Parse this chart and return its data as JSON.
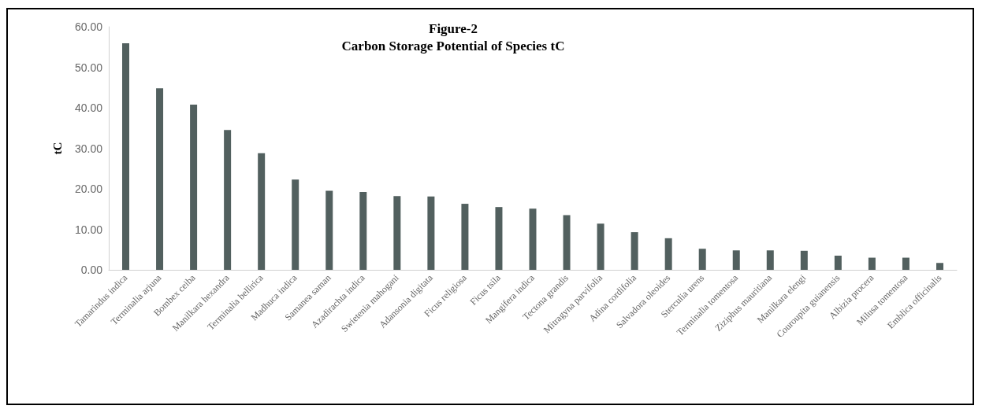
{
  "chart_data": {
    "type": "bar",
    "title": "Figure-2\nCarbon Storage Potential of Species tC",
    "ylabel": "tC",
    "categories": [
      "Tamarindus indica",
      "Terminalia arjuna",
      "Bombex ceiba",
      "Manilkara hexandra",
      "Terminalia bellirica",
      "Madhuca indica",
      "Samanea saman",
      "Azadirachta indica",
      "Swietenia mahogani",
      "Adansonia digitata",
      "Ficus religiosa",
      "Ficus tsila",
      "Mangifera indica",
      "Tectona grandis",
      "Mitragyna parvifolia",
      "Adina cordifolia",
      "Salvadora oleoides",
      "Sterculia urens",
      "Terminalia tomentosa",
      "Ziziphus mauritiana",
      "Manilkara elengi",
      "Couroupita guianensis",
      "Albizia procera",
      "Milusa tomentosa",
      "Emblica officinalis"
    ],
    "values": [
      55.9,
      44.8,
      40.8,
      34.5,
      28.8,
      22.3,
      19.5,
      19.2,
      18.2,
      18.1,
      16.3,
      15.5,
      15.1,
      13.5,
      11.4,
      9.3,
      7.8,
      5.2,
      4.8,
      4.8,
      4.7,
      3.5,
      3.0,
      3.0,
      1.7
    ],
    "color": "#52605f",
    "ylim": [
      0,
      60
    ],
    "yticks": [
      {
        "value": 0,
        "label": "0.00"
      },
      {
        "value": 10,
        "label": "10.00"
      },
      {
        "value": 20,
        "label": "20.00"
      },
      {
        "value": 30,
        "label": "30.00"
      },
      {
        "value": 40,
        "label": "40.00"
      },
      {
        "value": 50,
        "label": "50.00"
      },
      {
        "value": 60,
        "label": "60.00"
      }
    ],
    "grid": false
  }
}
